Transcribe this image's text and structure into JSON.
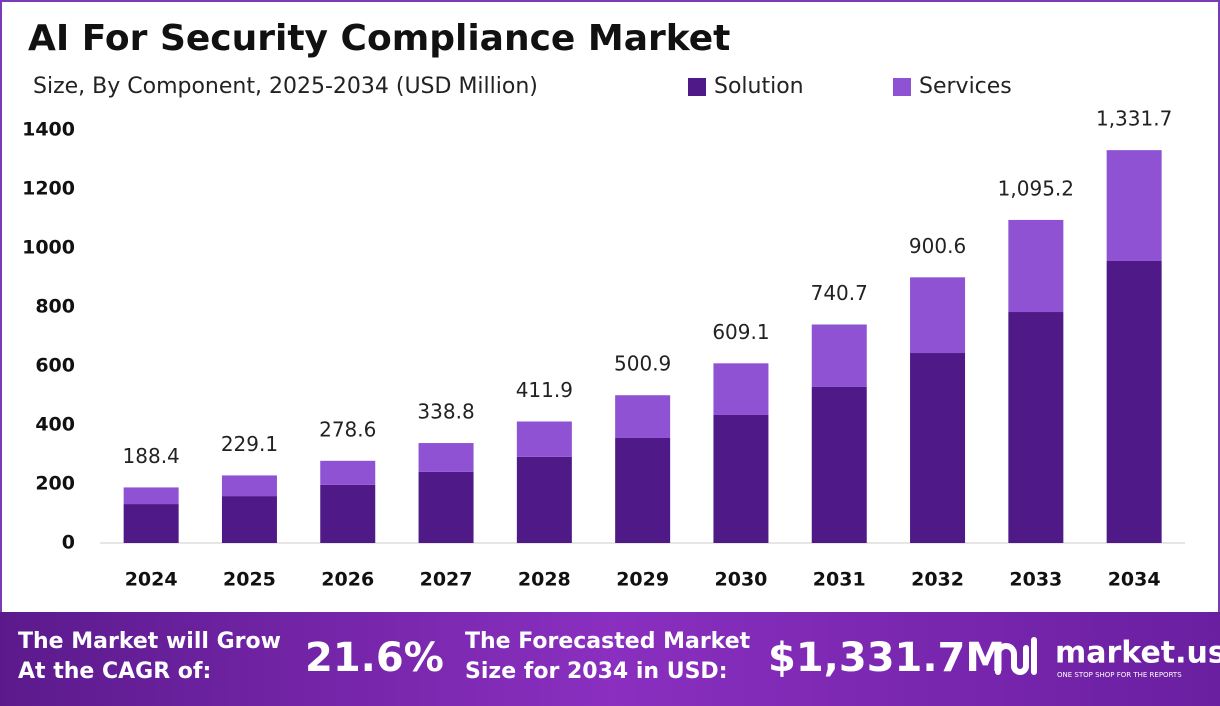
{
  "chart_data": {
    "type": "stacked_bar",
    "title": "AI For Security Compliance Market",
    "subtitle": "Size, By Component, 2025-2034 (USD Million)",
    "categories": [
      "2024",
      "2025",
      "2026",
      "2027",
      "2028",
      "2029",
      "2030",
      "2031",
      "2032",
      "2033",
      "2034"
    ],
    "series": [
      {
        "name": "Solution",
        "color": "#4f1a87",
        "values": [
          132,
          159,
          197,
          241,
          292,
          356,
          434,
          529,
          644,
          783,
          956
        ]
      },
      {
        "name": "Services",
        "color": "#8e52d2",
        "values": [
          56.4,
          70.1,
          81.6,
          97.8,
          119.9,
          144.9,
          175.1,
          211.7,
          256.6,
          312.2,
          375.7
        ]
      }
    ],
    "totals": [
      188.4,
      229.1,
      278.6,
      338.8,
      411.9,
      500.9,
      609.1,
      740.7,
      900.6,
      1095.2,
      1331.7
    ],
    "total_labels": [
      "188.4",
      "229.1",
      "278.6",
      "338.8",
      "411.9",
      "500.9",
      "609.1",
      "740.7",
      "900.6",
      "1,095.2",
      "1,331.7"
    ],
    "ylim": [
      0,
      1400
    ],
    "yticks": [
      0,
      200,
      400,
      600,
      800,
      1000,
      1200,
      1400
    ],
    "grid": false
  },
  "footer": {
    "cagr_text_1": "The Market will Grow",
    "cagr_text_2": "At the CAGR of:",
    "cagr_value": "21.6%",
    "forecast_text_1": "The Forecasted Market",
    "forecast_text_2": "Size for 2034 in USD:",
    "forecast_value": "$1,331.7M",
    "brand": "market.us",
    "tagline": "ONE STOP SHOP FOR THE REPORTS"
  }
}
